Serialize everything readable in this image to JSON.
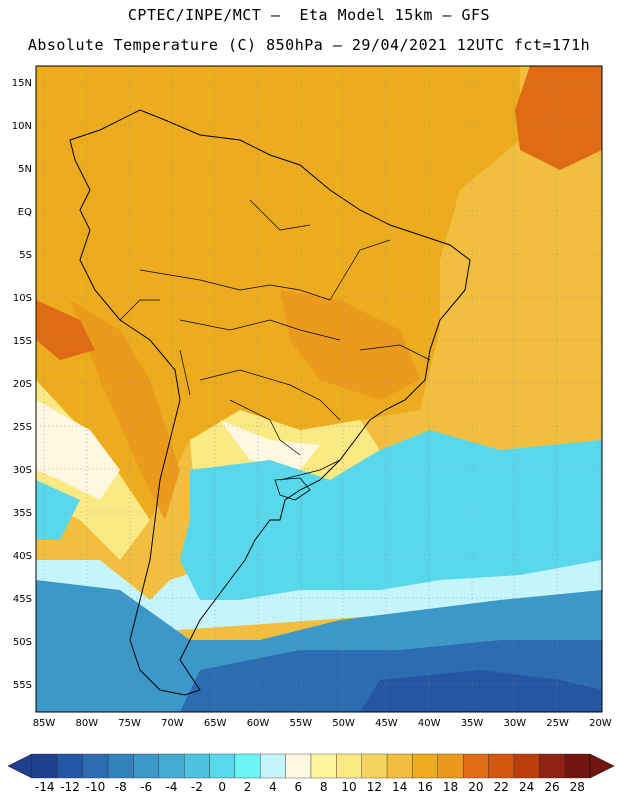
{
  "header": {
    "line1": "CPTEC/INPE/MCT –  Eta Model 15km – GFS",
    "line2": "Absolute Temperature (C) 850hPa – 29/04/2021 12UTC fct=171h"
  },
  "axes": {
    "lat_labels": [
      "15N",
      "10N",
      "5N",
      "EQ",
      "5S",
      "10S",
      "15S",
      "20S",
      "25S",
      "30S",
      "35S",
      "40S",
      "45S",
      "50S",
      "55S"
    ],
    "lon_labels": [
      "85W",
      "80W",
      "75W",
      "70W",
      "65W",
      "60W",
      "55W",
      "50W",
      "45W",
      "40W",
      "35W",
      "30W",
      "25W",
      "20W"
    ]
  },
  "colorbar": {
    "labels": [
      "-14",
      "-12",
      "-10",
      "-8",
      "-6",
      "-4",
      "-2",
      "0",
      "2",
      "4",
      "6",
      "8",
      "10",
      "12",
      "14",
      "16",
      "18",
      "20",
      "22",
      "24",
      "26",
      "28"
    ],
    "colors": [
      "#1f3f8f",
      "#2556a4",
      "#2c6cb0",
      "#3482bd",
      "#3c98c8",
      "#44acd4",
      "#4ec3e0",
      "#58d8ea",
      "#6cf5f5",
      "#c6f4fb",
      "#fff7e2",
      "#fdf6a1",
      "#fbe983",
      "#f7d45f",
      "#f2be3f",
      "#edab1e",
      "#eb9a1b",
      "#df6b14",
      "#d2570f",
      "#bb3f0d",
      "#8f2210",
      "#70150f"
    ]
  },
  "map": {
    "colors": {
      "ocean_south": "#2c6cb0",
      "ocean_cold": "#3c98c8",
      "cyan": "#58d8ea",
      "light_cyan": "#c6f4fb",
      "cream": "#fff7e2",
      "yellow": "#fbe983",
      "gold": "#f2be3f",
      "orange": "#edab1e",
      "dark_orange": "#eb9a1b",
      "red_orange": "#df6b14"
    }
  }
}
